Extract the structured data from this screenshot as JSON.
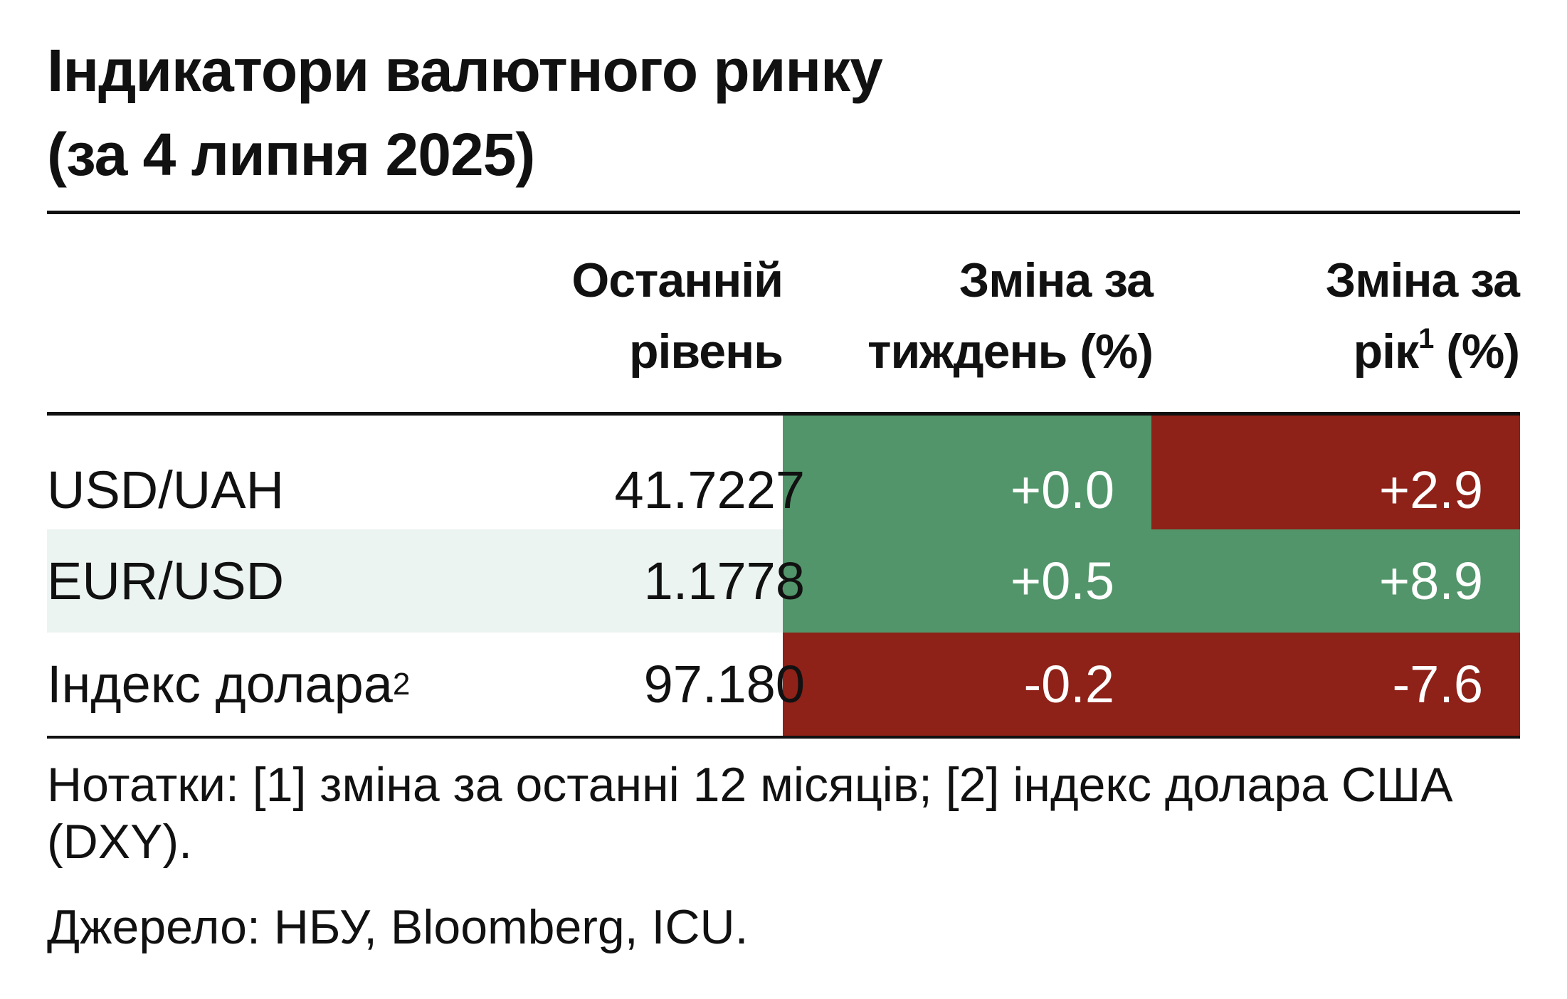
{
  "chart_data": {
    "type": "table",
    "title": "Індикатори валютного ринку",
    "subtitle": "(за 4 липня 2025)",
    "columns": [
      "Останній рівень",
      "Зміна за тиждень (%)",
      "Зміна за рік¹ (%)"
    ],
    "header": {
      "level_line1": "Останній",
      "level_line2": "рівень",
      "week_line1": "Зміна за",
      "week_line2": "тиждень (%)",
      "year_line1": "Зміна за",
      "year_line2_a": "рік",
      "year_line2_sup": "1",
      "year_line2_b": " (%)"
    },
    "rows": [
      {
        "name": "USD/UAH",
        "name_sup": "",
        "level": "41.7227",
        "week": "+0.0",
        "year": "+2.9",
        "week_value": 0.0,
        "year_value": 2.9,
        "week_color": "#52956a",
        "year_color": "#8e2118"
      },
      {
        "name": "EUR/USD",
        "name_sup": "",
        "level": "1.1778",
        "week": "+0.5",
        "year": "+8.9",
        "week_value": 0.5,
        "year_value": 8.9,
        "week_color": "#52956a",
        "year_color": "#52956a"
      },
      {
        "name": "Індекс долара",
        "name_sup": "2",
        "level": "97.180",
        "week": "-0.2",
        "year": "-7.6",
        "week_value": -0.2,
        "year_value": -7.6,
        "week_color": "#8e2118",
        "year_color": "#8e2118"
      }
    ],
    "notes": "Нотатки: [1] зміна за останні 12 місяців; [2] індекс долара США (DXY).",
    "source": "Джерело: НБУ, Bloomberg, ICU."
  }
}
